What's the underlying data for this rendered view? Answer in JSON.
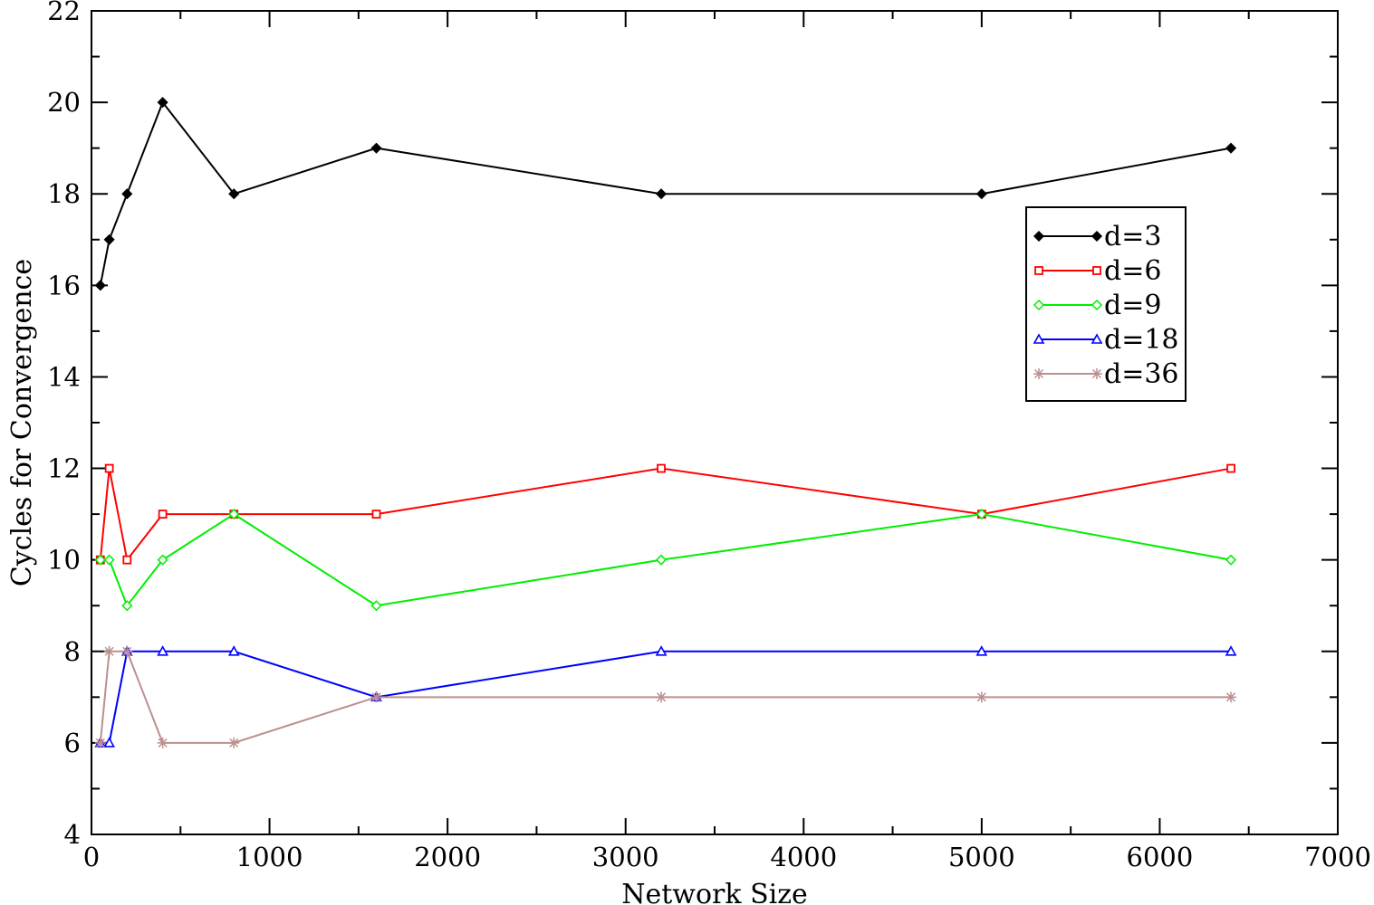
{
  "chart_data": {
    "type": "line",
    "title": "",
    "xlabel": "Network Size",
    "ylabel": "Cycles for Convergence",
    "xlim": [
      0,
      7000
    ],
    "ylim": [
      4,
      22
    ],
    "xticks": [
      0,
      1000,
      2000,
      3000,
      4000,
      5000,
      6000,
      7000
    ],
    "yticks": [
      4,
      6,
      8,
      10,
      12,
      14,
      16,
      18,
      20,
      22
    ],
    "x_minor_step": 500,
    "y_minor_step": 1,
    "grid": false,
    "legend_position": "top-right",
    "x": [
      50,
      100,
      200,
      400,
      800,
      1600,
      3200,
      5000,
      6400
    ],
    "series": [
      {
        "name": "d=3",
        "color": "#000000",
        "marker": "diamond-filled",
        "values": [
          16,
          17,
          18,
          20,
          18,
          19,
          18,
          18,
          19
        ]
      },
      {
        "name": "d=6",
        "color": "#ff0000",
        "marker": "square-open",
        "values": [
          10,
          12,
          10,
          11,
          11,
          11,
          12,
          11,
          12
        ]
      },
      {
        "name": "d=9",
        "color": "#00ee00",
        "marker": "diamond-open",
        "values": [
          10,
          10,
          9,
          10,
          11,
          9,
          10,
          11,
          10
        ]
      },
      {
        "name": "d=18",
        "color": "#0000ff",
        "marker": "triangle-open",
        "values": [
          6,
          6,
          8,
          8,
          8,
          7,
          8,
          8,
          8
        ]
      },
      {
        "name": "d=36",
        "color": "#bc8f8f",
        "marker": "star",
        "values": [
          6,
          8,
          8,
          6,
          6,
          7,
          7,
          7,
          7
        ]
      }
    ]
  }
}
